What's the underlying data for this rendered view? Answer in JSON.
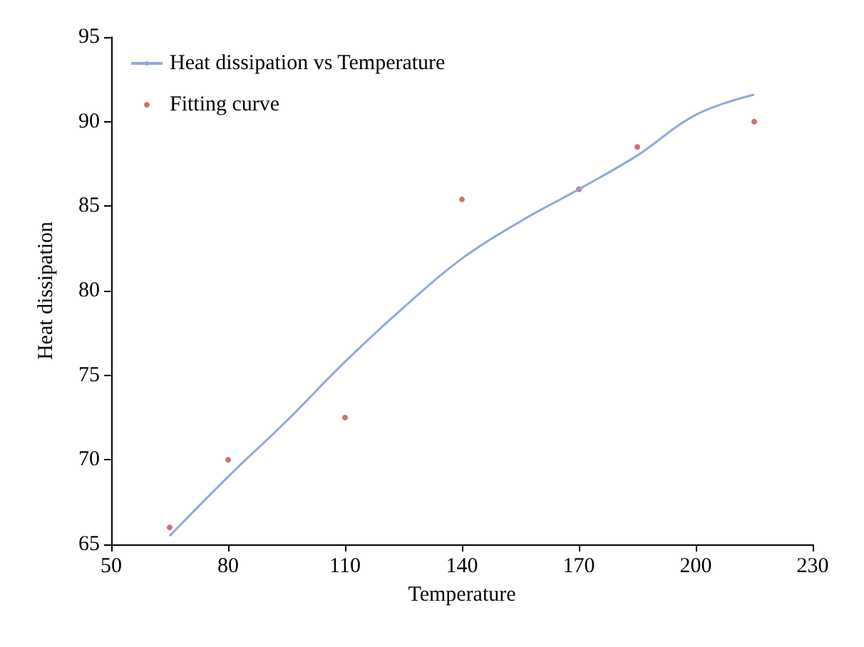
{
  "chart_data": {
    "type": "line",
    "xlabel": "Temperature",
    "ylabel": "Heat dissipation",
    "xlim": [
      50,
      230
    ],
    "xticks": [
      50,
      80,
      110,
      140,
      170,
      200,
      230
    ],
    "ylim": [
      65,
      95
    ],
    "yticks": [
      65,
      70,
      75,
      80,
      85,
      90,
      95
    ],
    "grid": false,
    "legend": "top left",
    "series": [
      {
        "name": "Heat dissipation vs Temperature",
        "color": "#8eaadb",
        "marker": "none",
        "x": [
          65,
          80,
          95,
          110,
          125,
          140,
          155,
          170,
          185,
          200,
          215
        ],
        "values": [
          65.5,
          69.0,
          72.3,
          75.8,
          79.0,
          81.9,
          84.1,
          86.0,
          88.0,
          90.4,
          91.6
        ]
      },
      {
        "name": "Fitting curve",
        "type": "scatter",
        "color": "#c0504d",
        "marker": "circle",
        "x": [
          65,
          80,
          110,
          140,
          170,
          185,
          215
        ],
        "values": [
          66,
          70,
          72.5,
          85.4,
          86,
          88.5,
          90
        ]
      }
    ]
  }
}
